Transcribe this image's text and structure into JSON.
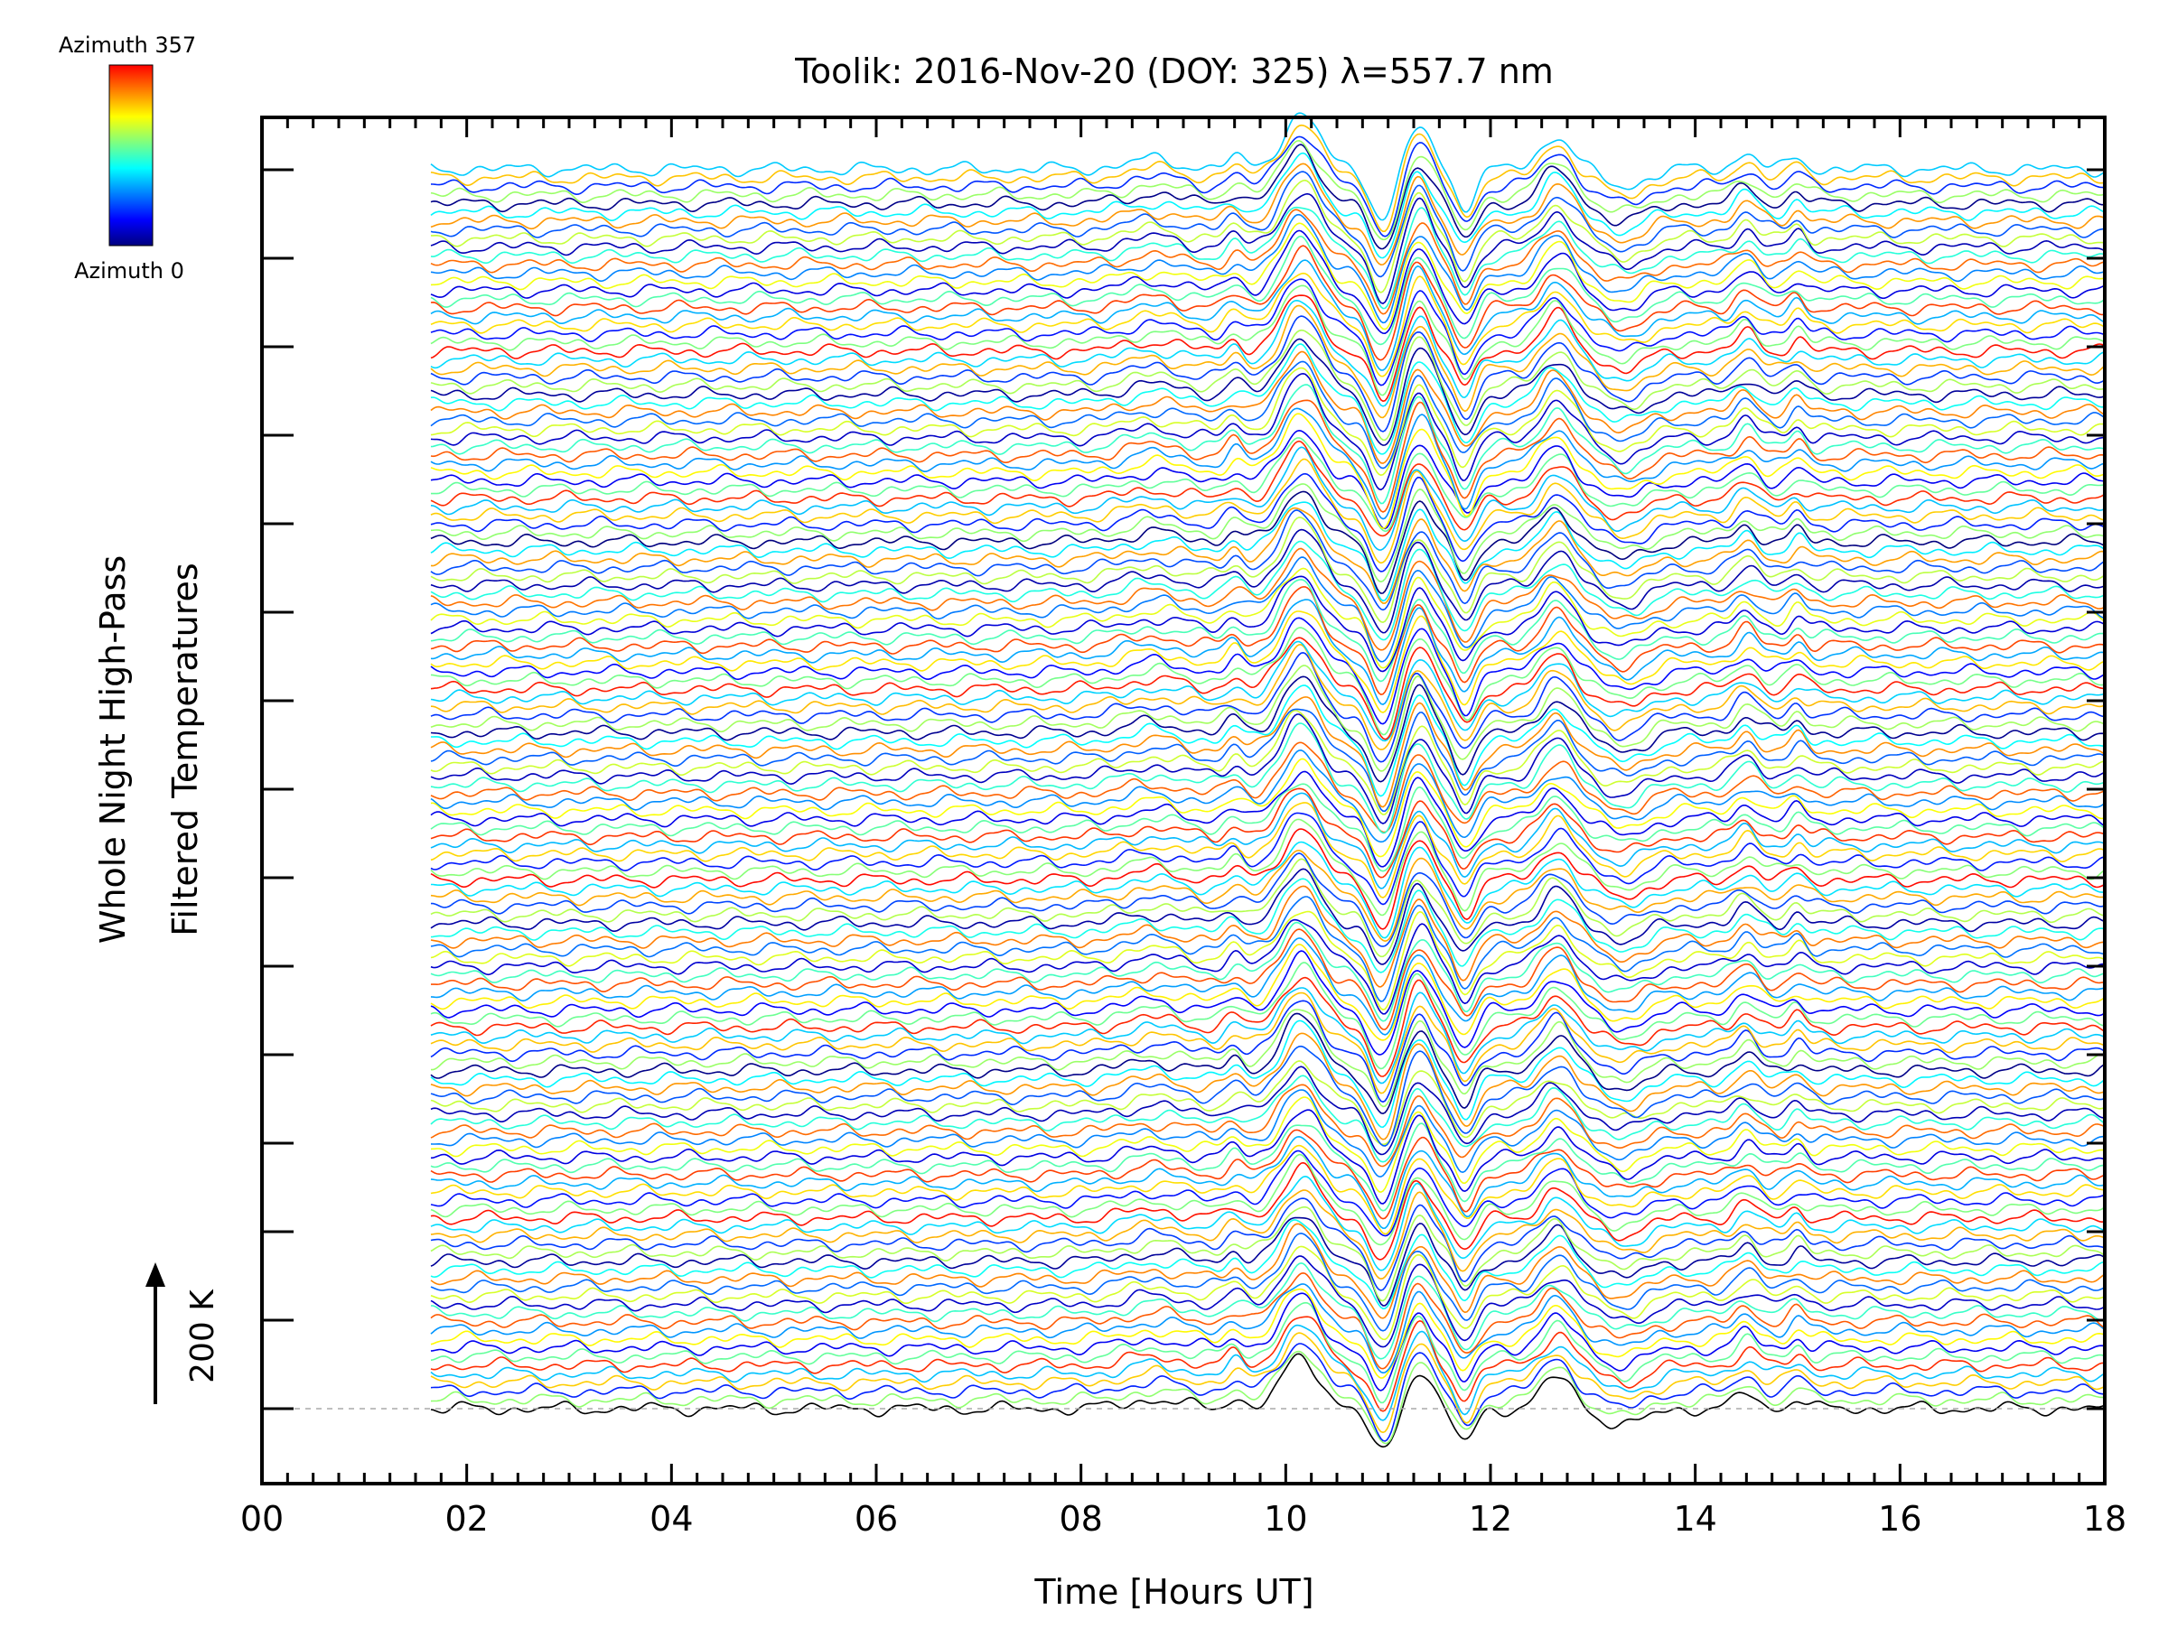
{
  "chart_data": {
    "type": "line",
    "title": "Toolik: 2016-Nov-20 (DOY: 325) λ=557.7 nm",
    "xlabel": "Time [Hours UT]",
    "ylabel_line1": "Whole Night High-Pass",
    "ylabel_line2": "Filtered Temperatures",
    "scale_bar_label": "200 K",
    "xlim": [
      0,
      18
    ],
    "x_ticks": [
      "00",
      "02",
      "04",
      "06",
      "08",
      "10",
      "12",
      "14",
      "16",
      "18"
    ],
    "x_tick_values": [
      0,
      2,
      4,
      6,
      8,
      10,
      12,
      14,
      16,
      18
    ],
    "data_start_hour": 1.65,
    "data_end_hour": 18,
    "trace_count": 144,
    "trace_offset_K": 20,
    "baseline_dashed": true,
    "grid": false,
    "legend": {
      "type": "colorbar",
      "position": "top-left",
      "max_label": "Azimuth 357",
      "min_label": "Azimuth 0",
      "colors": [
        "#00007f",
        "#0000ff",
        "#007fff",
        "#00ffff",
        "#7fff7f",
        "#ffff00",
        "#ff7f00",
        "#ff0000"
      ]
    },
    "features_hours_UT": [
      8.7,
      9.5,
      10.15,
      10.95,
      11.3,
      11.75,
      12.65,
      13.3,
      14.5,
      15.0
    ]
  }
}
